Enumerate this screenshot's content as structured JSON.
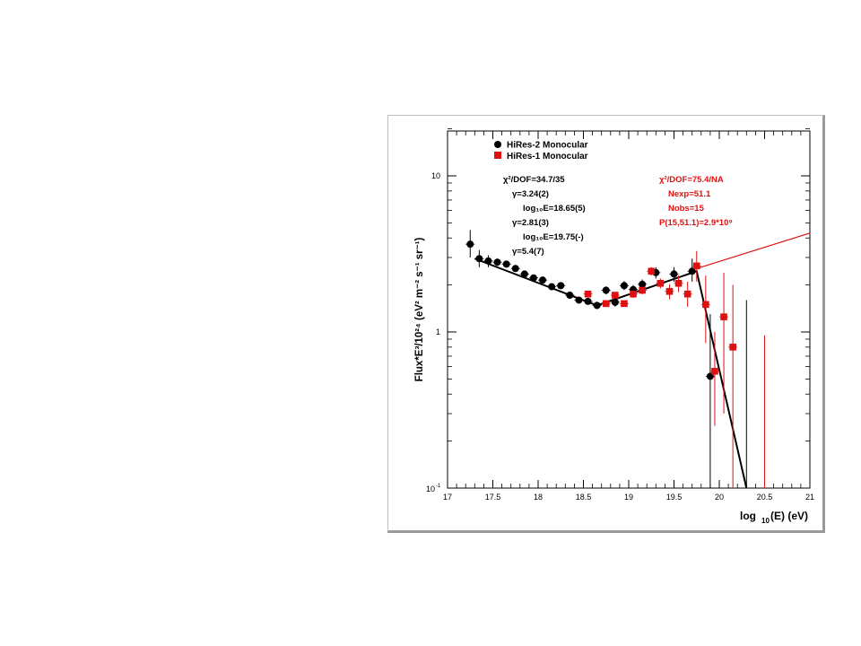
{
  "chart_data": {
    "type": "scatter",
    "xlabel": "log",
    "xlabel_sub": "10",
    "xlabel_rest": "(E) (eV)",
    "ylabel": "Flux*E",
    "ylabel_full": "Flux*E³/10²⁴ (eV² m⁻² s⁻¹ sr⁻¹)",
    "xlim": [
      17,
      21
    ],
    "ylim": [
      0.1,
      20
    ],
    "y_scale": "log",
    "x_ticks": [
      "17",
      "17.5",
      "18",
      "18.5",
      "19",
      "19.5",
      "20",
      "20.5",
      "21"
    ],
    "y_ticks": [
      "10",
      "1",
      "10"
    ],
    "y_tick_exp": "-1",
    "legend": [
      "HiRes-2 Monocular",
      "HiRes-1 Monocular"
    ],
    "colors": {
      "hires2": "#000000",
      "hires1": "#dd1111"
    },
    "annotations_black": [
      "χ²/DOF=34.7/35",
      "γ=3.24(2)",
      "log₁₀E=18.65(5)",
      "γ=2.81(3)",
      "log₁₀E=19.75(-)",
      "γ=5.4(7)"
    ],
    "annotations_red": [
      "χ²/DOF=75.4/NA",
      "Nexp=51.1",
      "Nobs=15",
      "P(15,51.1)=2.9*10⁹"
    ],
    "series": [
      {
        "name": "HiRes-2 Monocular",
        "marker": "circle",
        "points": [
          {
            "x": 17.25,
            "y": 3.65,
            "lo": 3.0,
            "hi": 4.5
          },
          {
            "x": 17.35,
            "y": 2.95,
            "lo": 2.6,
            "hi": 3.35
          },
          {
            "x": 17.45,
            "y": 2.85,
            "lo": 2.6,
            "hi": 3.1
          },
          {
            "x": 17.55,
            "y": 2.8,
            "lo": 2.65,
            "hi": 2.95
          },
          {
            "x": 17.65,
            "y": 2.72,
            "lo": 2.6,
            "hi": 2.85
          },
          {
            "x": 17.75,
            "y": 2.55,
            "lo": 2.45,
            "hi": 2.65
          },
          {
            "x": 17.85,
            "y": 2.35,
            "lo": 2.27,
            "hi": 2.43
          },
          {
            "x": 17.95,
            "y": 2.22,
            "lo": 2.15,
            "hi": 2.29
          },
          {
            "x": 18.05,
            "y": 2.15,
            "lo": 2.08,
            "hi": 2.22
          },
          {
            "x": 18.15,
            "y": 1.95,
            "lo": 1.88,
            "hi": 2.02
          },
          {
            "x": 18.25,
            "y": 1.98,
            "lo": 1.9,
            "hi": 2.06
          },
          {
            "x": 18.35,
            "y": 1.72,
            "lo": 1.65,
            "hi": 1.79
          },
          {
            "x": 18.45,
            "y": 1.6,
            "lo": 1.53,
            "hi": 1.67
          },
          {
            "x": 18.55,
            "y": 1.57,
            "lo": 1.5,
            "hi": 1.64
          },
          {
            "x": 18.65,
            "y": 1.48,
            "lo": 1.4,
            "hi": 1.56
          },
          {
            "x": 18.75,
            "y": 1.85,
            "lo": 1.74,
            "hi": 1.96
          },
          {
            "x": 18.85,
            "y": 1.55,
            "lo": 1.45,
            "hi": 1.65
          },
          {
            "x": 18.95,
            "y": 1.98,
            "lo": 1.85,
            "hi": 2.12
          },
          {
            "x": 19.05,
            "y": 1.87,
            "lo": 1.74,
            "hi": 2.0
          },
          {
            "x": 19.15,
            "y": 2.02,
            "lo": 1.87,
            "hi": 2.17
          },
          {
            "x": 19.3,
            "y": 2.4,
            "lo": 2.2,
            "hi": 2.6
          },
          {
            "x": 19.5,
            "y": 2.35,
            "lo": 2.1,
            "hi": 2.6
          },
          {
            "x": 19.7,
            "y": 2.45,
            "lo": 2.1,
            "hi": 2.95
          },
          {
            "x": 19.9,
            "y": 0.52,
            "lo": 0.1,
            "hi": 1.3
          }
        ]
      },
      {
        "name": "HiRes-1 Monocular",
        "marker": "square",
        "points": [
          {
            "x": 18.55,
            "y": 1.75,
            "lo": 1.7,
            "hi": 1.8
          },
          {
            "x": 18.75,
            "y": 1.52,
            "lo": 1.47,
            "hi": 1.57
          },
          {
            "x": 18.85,
            "y": 1.72,
            "lo": 1.66,
            "hi": 1.78
          },
          {
            "x": 18.95,
            "y": 1.52,
            "lo": 1.46,
            "hi": 1.58
          },
          {
            "x": 19.05,
            "y": 1.75,
            "lo": 1.65,
            "hi": 1.85
          },
          {
            "x": 19.15,
            "y": 1.85,
            "lo": 1.74,
            "hi": 1.96
          },
          {
            "x": 19.25,
            "y": 2.45,
            "lo": 2.3,
            "hi": 2.6
          },
          {
            "x": 19.35,
            "y": 2.05,
            "lo": 1.9,
            "hi": 2.2
          },
          {
            "x": 19.45,
            "y": 1.82,
            "lo": 1.62,
            "hi": 2.02
          },
          {
            "x": 19.55,
            "y": 2.05,
            "lo": 1.8,
            "hi": 2.3
          },
          {
            "x": 19.65,
            "y": 1.75,
            "lo": 1.45,
            "hi": 2.1
          },
          {
            "x": 19.75,
            "y": 2.65,
            "lo": 2.1,
            "hi": 3.3
          },
          {
            "x": 19.85,
            "y": 1.5,
            "lo": 0.85,
            "hi": 2.3
          },
          {
            "x": 19.95,
            "y": 0.56,
            "lo": 0.25,
            "hi": 1.0
          },
          {
            "x": 20.05,
            "y": 1.25,
            "lo": 0.3,
            "hi": 2.4
          },
          {
            "x": 20.15,
            "y": 0.8,
            "lo": 0.1,
            "hi": 2.0
          }
        ]
      }
    ],
    "upper_limits": [
      {
        "series": "HiRes-2 Monocular",
        "x": 20.3,
        "hi": 1.6
      },
      {
        "series": "HiRes-1 Monocular",
        "x": 20.5,
        "hi": 0.95
      }
    ],
    "fits": [
      {
        "series": "HiRes-2 Monocular",
        "kind": "broken power law",
        "points": [
          [
            17.3,
            2.95
          ],
          [
            18.65,
            1.48
          ],
          [
            19.75,
            2.45
          ],
          [
            20.3,
            0.1
          ]
        ]
      },
      {
        "series": "HiRes-1 Monocular",
        "kind": "extrapolation",
        "points": [
          [
            19.75,
            2.55
          ],
          [
            21.0,
            4.3
          ]
        ]
      }
    ]
  }
}
